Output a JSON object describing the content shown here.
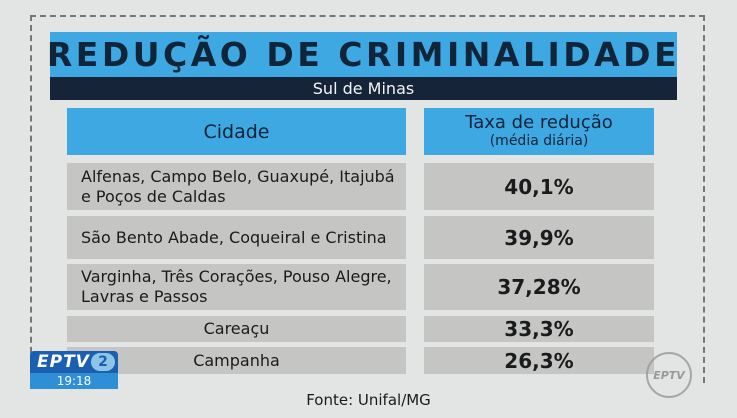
{
  "title": "REDUÇÃO DE CRIMINALIDADE",
  "subtitle": "Sul de Minas",
  "table": {
    "header_city": "Cidade",
    "header_rate_line1": "Taxa de redução",
    "header_rate_line2": "(média diária)",
    "rows": [
      {
        "city": "Alfenas, Campo Belo, Guaxupé, Itajubá e Poços de Caldas",
        "rate": "40,1%"
      },
      {
        "city": "São Bento Abade, Coqueiral e Cristina",
        "rate": "39,9%"
      },
      {
        "city": "Varginha, Três Corações, Pouso Alegre, Lavras e Passos",
        "rate": "37,28%"
      },
      {
        "city": "Careaçu",
        "rate": "33,3%"
      },
      {
        "city": "Campanha",
        "rate": "26,3%"
      }
    ]
  },
  "source": "Fonte: Unifal/MG",
  "broadcast": {
    "logo_text": "EPTV",
    "logo_number": "2",
    "clock": "19:18",
    "watermark": "EPTV"
  },
  "colors": {
    "accent_blue": "#3ea8e3",
    "navy": "#152439",
    "cell_gray": "#c5c5c4",
    "background": "#e3e5e5"
  }
}
